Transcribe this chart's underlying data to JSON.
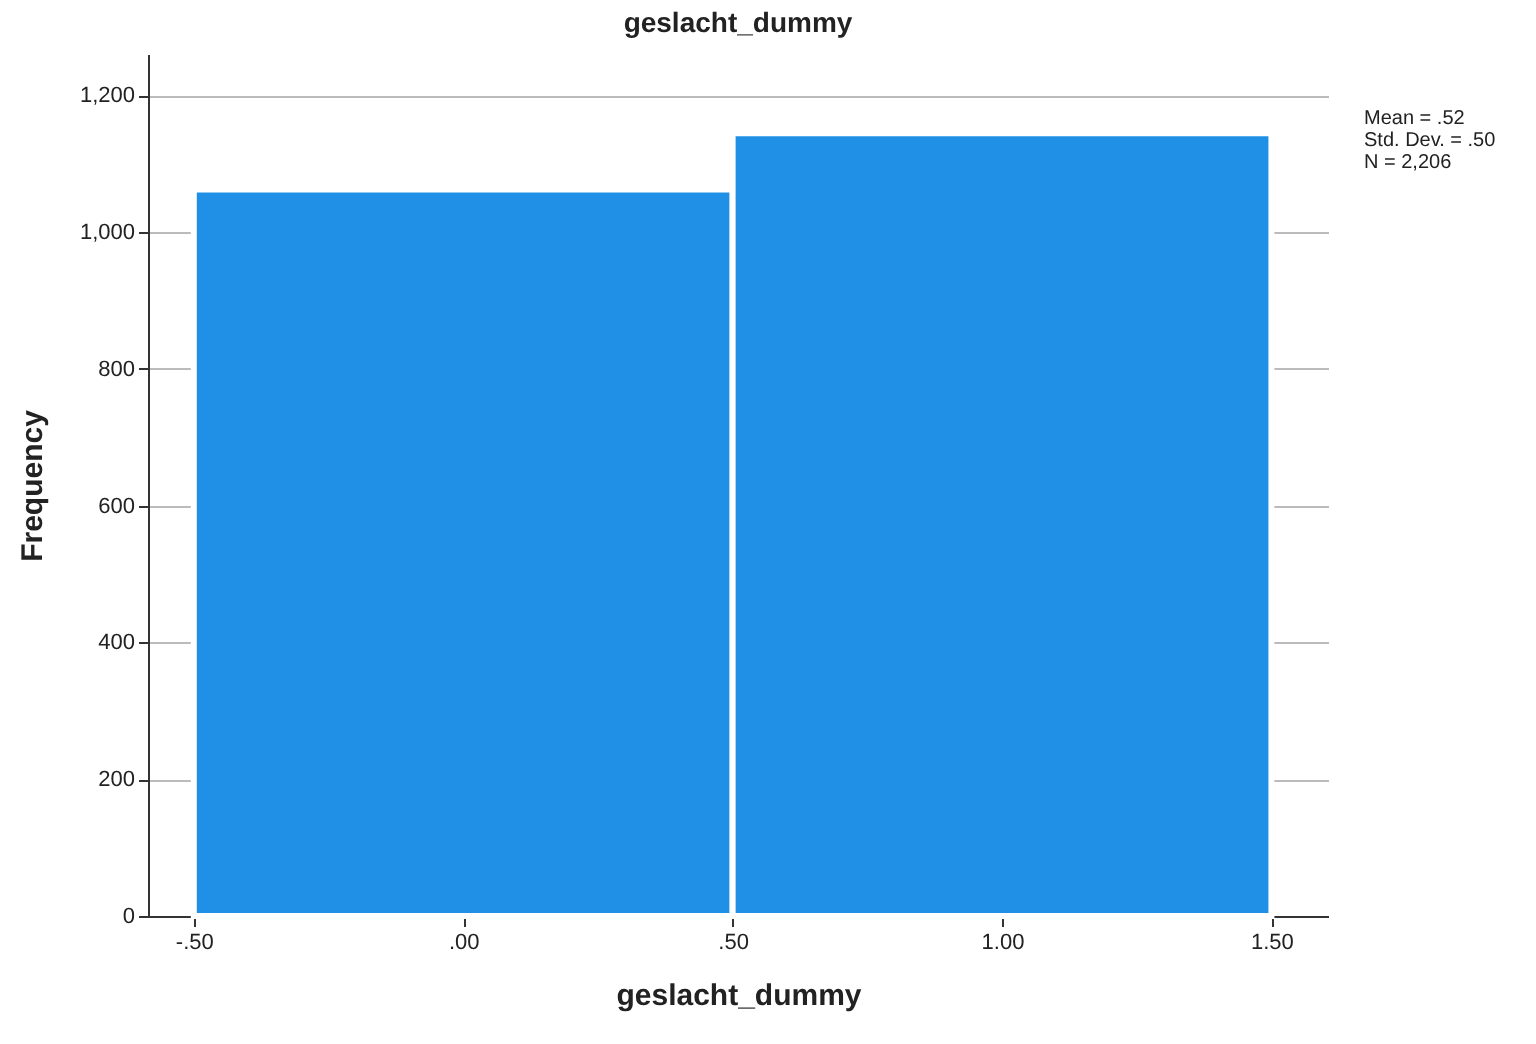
{
  "chart_data": {
    "type": "histogram",
    "title": "geslacht_dummy",
    "xlabel": "geslacht_dummy",
    "ylabel": "Frequency",
    "bins": [
      -0.5,
      0.5,
      1.5
    ],
    "values": [
      1062,
      1144
    ],
    "color": "#1f90e6",
    "xlim": [
      -0.585,
      1.605
    ],
    "xticks": [
      {
        "value": -0.5,
        "label": "-.50"
      },
      {
        "value": 0,
        "label": ".00"
      },
      {
        "value": 0.5,
        "label": ".50"
      },
      {
        "value": 1,
        "label": "1.00"
      },
      {
        "value": 1.5,
        "label": "1.50"
      }
    ],
    "ylim": [
      0,
      1260
    ],
    "yticks": [
      0,
      200,
      400,
      600,
      800,
      {
        "value": 1000,
        "label": "1,000"
      },
      {
        "value": 1200,
        "label": "1,200"
      }
    ],
    "grid": "y",
    "annotations": [
      "Mean = .52",
      "Std. Dev. = .50",
      "N = 2,206"
    ]
  }
}
